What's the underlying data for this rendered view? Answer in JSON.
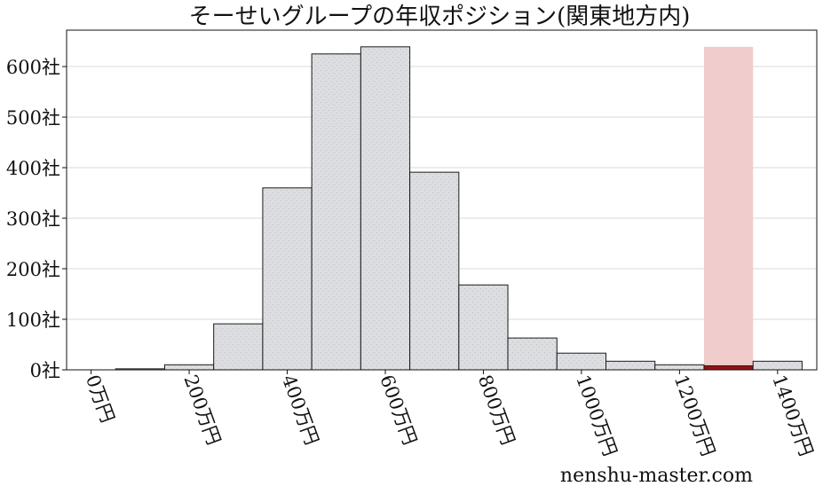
{
  "chart_data": {
    "type": "bar",
    "title": "そーせいグループの年収ポジション(関東地方内)",
    "xlabel": "",
    "ylabel": "",
    "x_unit_suffix": "万円",
    "y_unit_suffix": "社",
    "xlim": [
      -50,
      1480
    ],
    "ylim": [
      0,
      672
    ],
    "bin_width": 100,
    "bins": [
      {
        "start": 50,
        "end": 150,
        "value": 2
      },
      {
        "start": 150,
        "end": 250,
        "value": 10
      },
      {
        "start": 250,
        "end": 350,
        "value": 91
      },
      {
        "start": 350,
        "end": 450,
        "value": 360
      },
      {
        "start": 450,
        "end": 550,
        "value": 625
      },
      {
        "start": 550,
        "end": 650,
        "value": 639
      },
      {
        "start": 650,
        "end": 750,
        "value": 391
      },
      {
        "start": 750,
        "end": 850,
        "value": 168
      },
      {
        "start": 850,
        "end": 950,
        "value": 63
      },
      {
        "start": 950,
        "end": 1050,
        "value": 33
      },
      {
        "start": 1050,
        "end": 1150,
        "value": 17
      },
      {
        "start": 1150,
        "end": 1250,
        "value": 10
      },
      {
        "start": 1250,
        "end": 1350,
        "value": 8
      },
      {
        "start": 1350,
        "end": 1450,
        "value": 17
      }
    ],
    "highlight": {
      "start": 1250,
      "end": 1350,
      "value": 8,
      "band_value": 639
    },
    "x_ticks": [
      0,
      200,
      400,
      600,
      800,
      1000,
      1200,
      1400
    ],
    "x_tick_labels": [
      "0万円",
      "200万円",
      "400万円",
      "600万円",
      "800万円",
      "1000万円",
      "1200万円",
      "1400万円"
    ],
    "y_ticks": [
      0,
      100,
      200,
      300,
      400,
      500,
      600
    ],
    "y_tick_labels": [
      "0社",
      "100社",
      "200社",
      "300社",
      "400社",
      "500社",
      "600社"
    ],
    "grid": "horizontal",
    "colors": {
      "bar_fill": "#dcdde0",
      "bar_stroke": "#1a1a1a",
      "highlight_bar": "#9b1010",
      "highlight_band": "#f0cccc",
      "grid": "#d9d9d9"
    }
  },
  "watermark": "nenshu-master.com"
}
